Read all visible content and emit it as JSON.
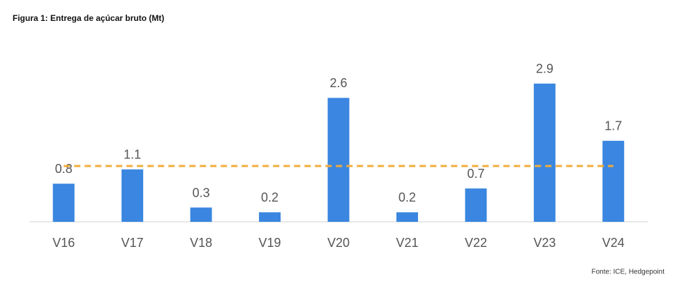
{
  "chart_data": {
    "type": "bar",
    "title": "Figura 1: Entrega de açúcar bruto (Mt)",
    "categories": [
      "V16",
      "V17",
      "V18",
      "V19",
      "V20",
      "V21",
      "V22",
      "V23",
      "V24"
    ],
    "values": [
      0.8,
      1.1,
      0.3,
      0.2,
      2.6,
      0.2,
      0.7,
      2.9,
      1.7
    ],
    "color": "#3a86e0",
    "ylim": [
      0,
      3
    ],
    "reference_line": {
      "value": 1.17,
      "color": "#f0ac3c",
      "dashed": true
    },
    "source": "Fonte: ICE, Hedgepoint"
  }
}
